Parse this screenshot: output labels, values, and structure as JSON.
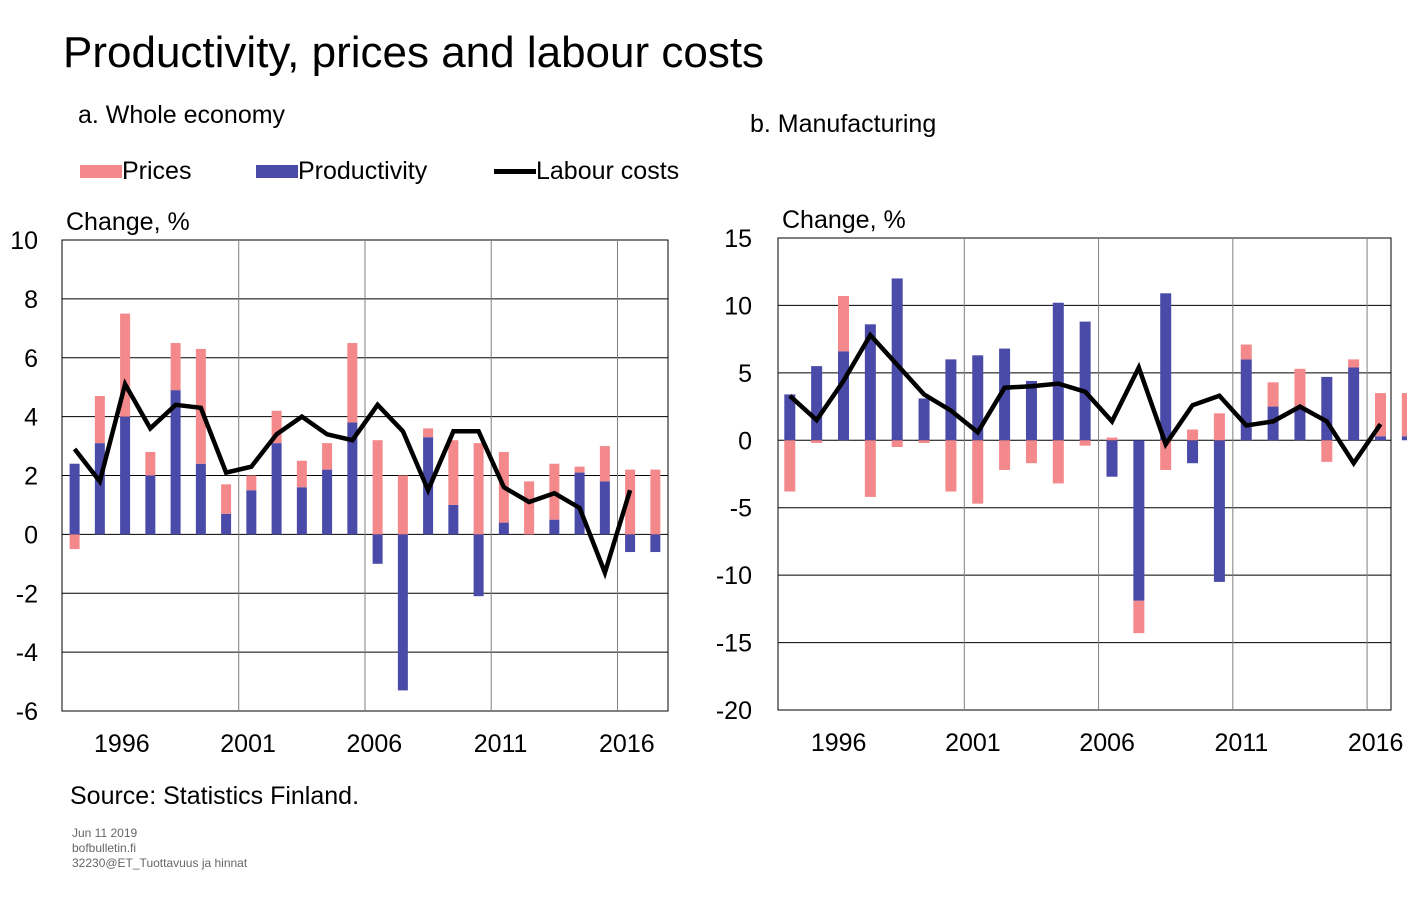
{
  "title": "Productivity, prices and labour costs",
  "legend": {
    "prices": "Prices",
    "productivity": "Productivity",
    "labour_costs": "Labour costs"
  },
  "colors": {
    "prices": "#f4898c",
    "productivity": "#4a4aa8",
    "labour_costs": "#000000",
    "grid": "#808080"
  },
  "source": "Source: Statistics Finland.",
  "footer": {
    "date": "Jun 11 2019",
    "site": "bofbulletin.fi",
    "code": "32230@ET_Tuottavuus  ja hinnat"
  },
  "chart_data": [
    {
      "type": "bar",
      "title": "a. Whole economy",
      "ylabel": "Change, %",
      "ylim": [
        -6,
        10
      ],
      "yticks": [
        10,
        8,
        6,
        4,
        2,
        0,
        -2,
        -4,
        -6
      ],
      "xticks": [
        "1996",
        "2001",
        "2006",
        "2011",
        "2016"
      ],
      "categories": [
        1995,
        1996,
        1997,
        1998,
        1999,
        2000,
        2001,
        2002,
        2003,
        2004,
        2005,
        2006,
        2007,
        2008,
        2009,
        2010,
        2011,
        2012,
        2013,
        2014,
        2015,
        2016,
        2017,
        2018
      ],
      "series": [
        {
          "name": "Prices",
          "kind": "bar",
          "values": [
            -0.5,
            1.6,
            3.5,
            0.8,
            1.6,
            3.9,
            1.0,
            0.5,
            1.1,
            0.9,
            0.9,
            2.7,
            3.2,
            2.0,
            0.3,
            2.2,
            3.1,
            2.4,
            1.8,
            1.9,
            0.2,
            1.2,
            2.2,
            2.2
          ]
        },
        {
          "name": "Productivity",
          "kind": "bar",
          "values": [
            2.4,
            3.1,
            4.0,
            2.0,
            4.9,
            2.4,
            0.7,
            1.5,
            3.1,
            1.6,
            2.2,
            3.8,
            -1.0,
            -5.3,
            3.3,
            1.0,
            -2.1,
            0.4,
            0.0,
            0.5,
            2.1,
            1.8,
            -0.6,
            -0.6
          ]
        },
        {
          "name": "Labour costs",
          "kind": "line",
          "values": [
            2.9,
            1.8,
            5.1,
            3.6,
            4.4,
            4.3,
            2.1,
            2.3,
            3.4,
            4.0,
            3.4,
            3.2,
            4.4,
            3.5,
            1.5,
            3.5,
            3.5,
            1.6,
            1.1,
            1.4,
            0.9,
            -1.3,
            1.5,
            null
          ]
        }
      ]
    },
    {
      "type": "bar",
      "title": "b. Manufacturing",
      "ylabel": "Change, %",
      "ylim": [
        -20,
        15
      ],
      "yticks": [
        15,
        10,
        5,
        0,
        -5,
        -10,
        -15,
        -20
      ],
      "xticks": [
        "1996",
        "2001",
        "2006",
        "2011",
        "2016"
      ],
      "categories": [
        1995,
        1996,
        1997,
        1998,
        1999,
        2000,
        2001,
        2002,
        2003,
        2004,
        2005,
        2006,
        2007,
        2008,
        2009,
        2010,
        2011,
        2012,
        2013,
        2014,
        2015,
        2016,
        2017,
        2018
      ],
      "series": [
        {
          "name": "Prices",
          "kind": "bar",
          "values": [
            -3.8,
            -0.2,
            4.1,
            -4.2,
            -0.5,
            -0.2,
            -3.8,
            -4.7,
            -2.2,
            -1.7,
            -3.2,
            -0.4,
            0.2,
            -2.4,
            -2.2,
            0.8,
            2.0,
            1.1,
            1.8,
            2.8,
            -1.6,
            0.6,
            3.2,
            3.2
          ]
        },
        {
          "name": "Productivity",
          "kind": "bar",
          "values": [
            3.4,
            5.5,
            6.6,
            8.6,
            12.0,
            3.1,
            6.0,
            6.3,
            6.8,
            4.4,
            10.2,
            8.8,
            -2.7,
            -11.9,
            10.9,
            -1.7,
            -10.5,
            6.0,
            2.5,
            2.5,
            4.7,
            5.4,
            0.3,
            0.3
          ]
        },
        {
          "name": "Labour costs",
          "kind": "line",
          "values": [
            3.3,
            1.5,
            4.4,
            7.8,
            5.6,
            3.4,
            2.2,
            0.6,
            3.9,
            4.0,
            4.2,
            3.6,
            1.4,
            5.4,
            -0.3,
            2.6,
            3.3,
            1.1,
            1.4,
            2.5,
            1.4,
            -1.7,
            1.2,
            null
          ]
        }
      ]
    }
  ]
}
